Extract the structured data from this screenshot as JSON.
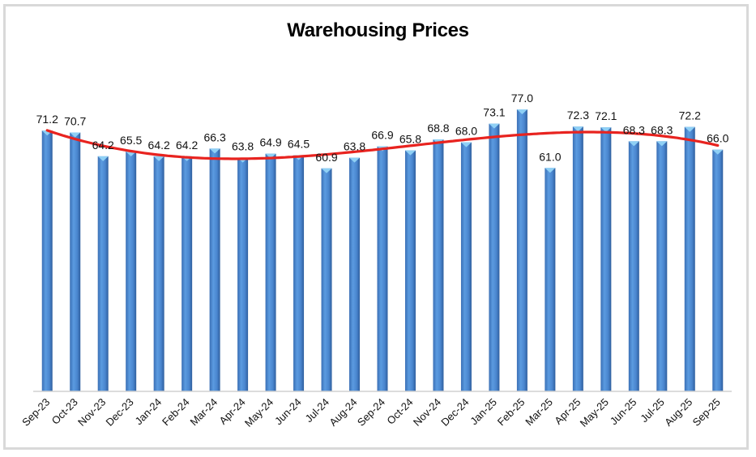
{
  "chart_data": {
    "type": "bar",
    "title": "Warehousing Prices",
    "xlabel": "",
    "ylabel": "",
    "ylim": [
      0,
      77
    ],
    "grid": false,
    "legend": "none",
    "categories": [
      "Sep-23",
      "Oct-23",
      "Nov-23",
      "Dec-23",
      "Jan-24",
      "Feb-24",
      "Mar-24",
      "Apr-24",
      "May-24",
      "Jun-24",
      "Jul-24",
      "Aug-24",
      "Sep-24",
      "Oct-24",
      "Nov-24",
      "Dec-24",
      "Jan-25",
      "Feb-25",
      "Mar-25",
      "Apr-25",
      "May-25",
      "Jun-25",
      "Jul-25",
      "Aug-25",
      "Sep-25"
    ],
    "values": [
      71.2,
      70.7,
      64.2,
      65.5,
      64.2,
      64.2,
      66.3,
      63.8,
      64.9,
      64.5,
      60.9,
      63.8,
      66.9,
      65.8,
      68.8,
      68.0,
      73.1,
      77.0,
      61.0,
      72.3,
      72.1,
      68.3,
      68.3,
      72.2,
      66.0
    ],
    "data_labels": [
      "71.2",
      "70.7",
      "64.2",
      "65.5",
      "64.2",
      "64.2",
      "66.3",
      "63.8",
      "64.9",
      "64.5",
      "60.9",
      "63.8",
      "66.9",
      "65.8",
      "68.8",
      "68.0",
      "73.1",
      "77.0",
      "61.0",
      "72.3",
      "72.1",
      "68.3",
      "68.3",
      "72.2",
      "66.0"
    ],
    "trendline": {
      "type": "polynomial",
      "color": "#e8231f"
    },
    "bar_color": "#4a86cf"
  }
}
